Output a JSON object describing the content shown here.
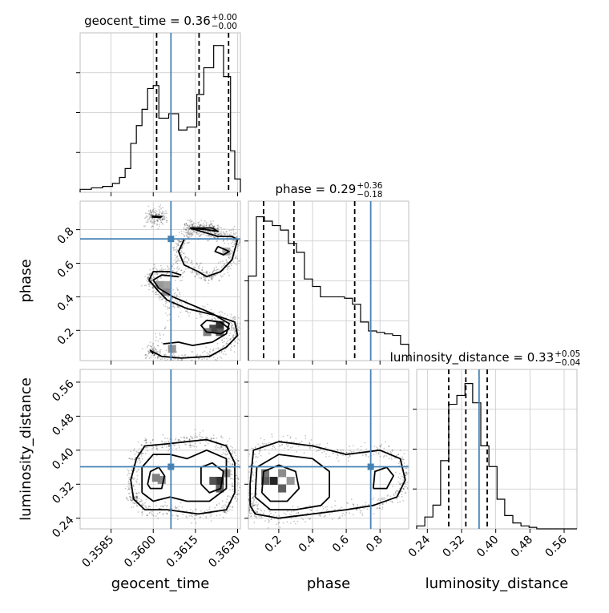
{
  "chart_data": {
    "type": "corner",
    "parameters": [
      "geocent_time",
      "phase",
      "luminosity_distance"
    ],
    "grid": true,
    "titles": [
      {
        "param": "geocent_time",
        "text": "geocent_time = 0.36",
        "sup": "+0.00",
        "sub": "−0.00"
      },
      {
        "param": "phase",
        "text": "phase = 0.29",
        "sup": "+0.36",
        "sub": "−0.18"
      },
      {
        "param": "luminosity_distance",
        "text": "luminosity_distance = 0.33",
        "sup": "+0.05",
        "sub": "−0.04"
      }
    ],
    "axis_labels": {
      "geocent_time": "geocent_time",
      "phase": "phase",
      "luminosity_distance": "luminosity_distance"
    },
    "ranges": {
      "geocent_time": [
        0.3574,
        0.3631
      ],
      "phase": [
        0.02,
        0.97
      ],
      "luminosity_distance": [
        0.215,
        0.59
      ]
    },
    "ticks": {
      "geocent_time": [
        "0.3585",
        "0.3600",
        "0.3615",
        "0.3630"
      ],
      "phase": [
        "0.2",
        "0.4",
        "0.6",
        "0.8"
      ],
      "luminosity_distance": [
        "0.24",
        "0.32",
        "0.40",
        "0.48",
        "0.56"
      ]
    },
    "truths": {
      "geocent_time": 0.36063,
      "phase": 0.745,
      "luminosity_distance": 0.361
    },
    "quantiles": {
      "geocent_time": [
        0.36012,
        0.36163,
        0.36268
      ],
      "phase": [
        0.11,
        0.29,
        0.65
      ],
      "luminosity_distance": [
        0.29,
        0.33,
        0.38
      ]
    },
    "histograms": {
      "geocent_time": {
        "edges": [
          0.3574,
          0.3578,
          0.3582,
          0.35855,
          0.3588,
          0.359,
          0.3592,
          0.3594,
          0.3596,
          0.3598,
          0.36,
          0.3602,
          0.36055,
          0.3609,
          0.3612,
          0.36155,
          0.3618,
          0.36215,
          0.3625,
          0.36275,
          0.3629,
          0.3631
        ],
        "counts": [
          0.02,
          0.03,
          0.04,
          0.06,
          0.1,
          0.16,
          0.33,
          0.45,
          0.56,
          0.7,
          0.72,
          0.5,
          0.53,
          0.42,
          0.44,
          0.66,
          0.84,
          0.99,
          0.78,
          0.28,
          0.09
        ]
      },
      "phase": {
        "edges": [
          0.02,
          0.067,
          0.115,
          0.162,
          0.21,
          0.257,
          0.305,
          0.352,
          0.4,
          0.447,
          0.495,
          0.542,
          0.59,
          0.637,
          0.685,
          0.732,
          0.78,
          0.827,
          0.875,
          0.922,
          0.97
        ],
        "counts": [
          0.57,
          0.97,
          0.94,
          0.91,
          0.88,
          0.79,
          0.73,
          0.55,
          0.5,
          0.43,
          0.43,
          0.43,
          0.42,
          0.38,
          0.26,
          0.2,
          0.19,
          0.18,
          0.17,
          0.11
        ]
      },
      "luminosity_distance": {
        "edges": [
          0.215,
          0.234,
          0.253,
          0.271,
          0.29,
          0.309,
          0.328,
          0.346,
          0.365,
          0.384,
          0.403,
          0.421,
          0.44,
          0.459,
          0.478,
          0.496,
          0.515,
          0.534,
          0.553,
          0.571,
          0.59
        ],
        "counts": [
          0.02,
          0.08,
          0.16,
          0.46,
          0.84,
          0.9,
          0.98,
          0.85,
          0.56,
          0.42,
          0.2,
          0.09,
          0.04,
          0.02,
          0.01,
          0.0,
          0.0,
          0.0,
          0.0,
          0.0
        ]
      }
    },
    "contours": {
      "phase_vs_geocent_time": [
        {
          "level": 1,
          "points": [
            [
              0.35995,
              0.875
            ],
            [
              0.36025,
              0.872
            ],
            [
              0.3603,
              0.878
            ],
            [
              0.35995,
              0.88
            ]
          ]
        },
        {
          "level": 1,
          "points": [
            [
              0.361,
              0.53
            ],
            [
              0.3606,
              0.55
            ],
            [
              0.36,
              0.55
            ],
            [
              0.35985,
              0.5
            ],
            [
              0.36015,
              0.44
            ],
            [
              0.3605,
              0.38
            ],
            [
              0.3612,
              0.33
            ],
            [
              0.3622,
              0.29
            ],
            [
              0.3629,
              0.25
            ],
            [
              0.363,
              0.17
            ],
            [
              0.3626,
              0.1
            ],
            [
              0.362,
              0.045
            ],
            [
              0.361,
              0.035
            ],
            [
              0.3603,
              0.045
            ],
            [
              0.3599,
              0.08
            ],
            [
              0.36,
              0.06
            ]
          ]
        },
        {
          "level": 2,
          "points": [
            [
              0.3609,
              0.52
            ],
            [
              0.3603,
              0.53
            ],
            [
              0.36,
              0.5
            ],
            [
              0.3602,
              0.45
            ],
            [
              0.3607,
              0.4
            ],
            [
              0.3614,
              0.35
            ],
            [
              0.3621,
              0.3
            ],
            [
              0.3627,
              0.24
            ],
            [
              0.3626,
              0.18
            ],
            [
              0.3621,
              0.13
            ],
            [
              0.3614,
              0.11
            ],
            [
              0.3609,
              0.13
            ],
            [
              0.36035,
              0.12
            ]
          ]
        },
        {
          "level": 3,
          "points": [
            [
              0.3619,
              0.26
            ],
            [
              0.3624,
              0.25
            ],
            [
              0.3627,
              0.21
            ],
            [
              0.3624,
              0.18
            ],
            [
              0.3619,
              0.19
            ],
            [
              0.3617,
              0.23
            ],
            [
              0.3619,
              0.26
            ]
          ]
        },
        {
          "level": 1,
          "points": [
            [
              0.3613,
              0.81
            ],
            [
              0.3619,
              0.78
            ],
            [
              0.3623,
              0.76
            ],
            [
              0.3628,
              0.76
            ],
            [
              0.363,
              0.74
            ],
            [
              0.3628,
              0.62
            ],
            [
              0.3624,
              0.55
            ],
            [
              0.3619,
              0.52
            ],
            [
              0.3616,
              0.55
            ],
            [
              0.3611,
              0.59
            ],
            [
              0.3609,
              0.67
            ],
            [
              0.3611,
              0.74
            ]
          ]
        },
        {
          "level": 2,
          "points": [
            [
              0.3623,
              0.7
            ],
            [
              0.3627,
              0.67
            ],
            [
              0.3625,
              0.65
            ],
            [
              0.3622,
              0.67
            ],
            [
              0.3623,
              0.7
            ]
          ]
        },
        {
          "level": 1,
          "points": [
            [
              0.3613,
              0.81
            ],
            [
              0.3619,
              0.8
            ],
            [
              0.3623,
              0.79
            ],
            [
              0.3621,
              0.81
            ],
            [
              0.3613,
              0.81
            ]
          ]
        }
      ],
      "luminosity_distance_vs_geocent_time": [
        {
          "level": 1,
          "points": [
            [
              0.3593,
              0.285
            ],
            [
              0.3592,
              0.33
            ],
            [
              0.3594,
              0.38
            ],
            [
              0.3597,
              0.41
            ],
            [
              0.3605,
              0.415
            ],
            [
              0.3612,
              0.42
            ],
            [
              0.3619,
              0.425
            ],
            [
              0.3626,
              0.41
            ],
            [
              0.3629,
              0.37
            ],
            [
              0.3629,
              0.3
            ],
            [
              0.3626,
              0.26
            ],
            [
              0.3616,
              0.25
            ],
            [
              0.3605,
              0.26
            ],
            [
              0.3597,
              0.26
            ],
            [
              0.3593,
              0.285
            ]
          ]
        },
        {
          "level": 2,
          "points": [
            [
              0.3596,
              0.3
            ],
            [
              0.3596,
              0.36
            ],
            [
              0.36,
              0.39
            ],
            [
              0.3606,
              0.39
            ],
            [
              0.3612,
              0.38
            ],
            [
              0.3619,
              0.4
            ],
            [
              0.3626,
              0.38
            ],
            [
              0.3626,
              0.31
            ],
            [
              0.362,
              0.28
            ],
            [
              0.3612,
              0.28
            ],
            [
              0.3606,
              0.29
            ],
            [
              0.36,
              0.28
            ],
            [
              0.3596,
              0.3
            ]
          ]
        },
        {
          "level": 3,
          "points": [
            [
              0.3598,
              0.32
            ],
            [
              0.3599,
              0.35
            ],
            [
              0.3602,
              0.36
            ],
            [
              0.3604,
              0.34
            ],
            [
              0.3603,
              0.31
            ],
            [
              0.3599,
              0.31
            ],
            [
              0.3598,
              0.32
            ]
          ]
        },
        {
          "level": 3,
          "points": [
            [
              0.3617,
              0.32
            ],
            [
              0.3617,
              0.36
            ],
            [
              0.3621,
              0.37
            ],
            [
              0.3625,
              0.35
            ],
            [
              0.3624,
              0.31
            ],
            [
              0.362,
              0.3
            ],
            [
              0.3617,
              0.32
            ]
          ]
        }
      ],
      "luminosity_distance_vs_phase": [
        {
          "level": 1,
          "points": [
            [
              0.03,
              0.27
            ],
            [
              0.03,
              0.32
            ],
            [
              0.05,
              0.4
            ],
            [
              0.2,
              0.42
            ],
            [
              0.4,
              0.41
            ],
            [
              0.6,
              0.39
            ],
            [
              0.8,
              0.4
            ],
            [
              0.92,
              0.38
            ],
            [
              0.95,
              0.33
            ],
            [
              0.9,
              0.29
            ],
            [
              0.76,
              0.27
            ],
            [
              0.6,
              0.26
            ],
            [
              0.4,
              0.25
            ],
            [
              0.2,
              0.24
            ],
            [
              0.06,
              0.25
            ],
            [
              0.03,
              0.27
            ]
          ]
        },
        {
          "level": 2,
          "points": [
            [
              0.06,
              0.29
            ],
            [
              0.07,
              0.36
            ],
            [
              0.2,
              0.39
            ],
            [
              0.4,
              0.38
            ],
            [
              0.5,
              0.35
            ],
            [
              0.5,
              0.29
            ],
            [
              0.45,
              0.27
            ],
            [
              0.3,
              0.26
            ],
            [
              0.15,
              0.26
            ],
            [
              0.06,
              0.29
            ]
          ]
        },
        {
          "level": 3,
          "points": [
            [
              0.1,
              0.3
            ],
            [
              0.11,
              0.35
            ],
            [
              0.2,
              0.365
            ],
            [
              0.3,
              0.35
            ],
            [
              0.32,
              0.31
            ],
            [
              0.25,
              0.28
            ],
            [
              0.15,
              0.28
            ],
            [
              0.1,
              0.3
            ]
          ]
        },
        {
          "level": 2,
          "points": [
            [
              0.76,
              0.31
            ],
            [
              0.77,
              0.35
            ],
            [
              0.84,
              0.36
            ],
            [
              0.88,
              0.34
            ],
            [
              0.84,
              0.31
            ],
            [
              0.76,
              0.31
            ]
          ]
        }
      ]
    },
    "density_cells": {
      "phase_vs_geocent_time": [
        [
          0.36237,
          0.23,
          0.9
        ],
        [
          0.36214,
          0.21,
          0.8
        ],
        [
          0.36192,
          0.19,
          0.55
        ],
        [
          0.36237,
          0.19,
          0.7
        ],
        [
          0.36046,
          0.43,
          0.5
        ],
        [
          0.36023,
          0.47,
          0.45
        ],
        [
          0.36067,
          0.09,
          0.45
        ],
        [
          0.3626,
          0.67,
          0.35
        ],
        [
          0.36046,
          0.47,
          0.4
        ]
      ],
      "luminosity_distance_vs_geocent_time": [
        [
          0.36237,
          0.328,
          0.9
        ],
        [
          0.36214,
          0.328,
          0.75
        ],
        [
          0.36237,
          0.31,
          0.7
        ],
        [
          0.3601,
          0.335,
          0.55
        ],
        [
          0.3603,
          0.33,
          0.5
        ],
        [
          0.3626,
          0.346,
          0.5
        ]
      ],
      "luminosity_distance_vs_phase": [
        [
          0.17,
          0.328,
          0.95
        ],
        [
          0.12,
          0.328,
          0.7
        ],
        [
          0.22,
          0.31,
          0.7
        ],
        [
          0.12,
          0.346,
          0.6
        ],
        [
          0.22,
          0.346,
          0.5
        ],
        [
          0.27,
          0.328,
          0.45
        ]
      ]
    }
  }
}
